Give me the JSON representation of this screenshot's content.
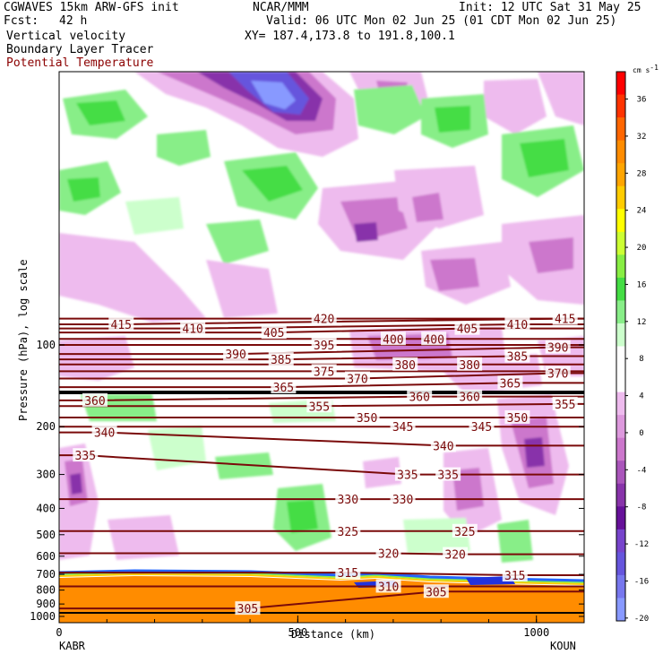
{
  "header": {
    "model": "CGWAVES 15km ARW-GFS init",
    "fcst_label": "Fcst:",
    "fcst_value": "42 h",
    "center": "NCAR/MMM",
    "init": "Init: 12 UTC Sat 31 May 25",
    "valid": "Valid: 06 UTC Mon 02 Jun 25 (01 CDT Mon 02 Jun 25)",
    "xy": "XY= 187.4,173.8 to 191.8,100.1",
    "fields": [
      "Vertical velocity",
      "Boundary Layer Tracer",
      "Potential Temperature"
    ]
  },
  "colors": {
    "theta": "#7a0a0a",
    "tropopause": "#000000",
    "bl_tracer": "#ff8c00"
  },
  "chart_data": {
    "type": "heatmap",
    "xlabel": "Distance (km)",
    "ylabel": "Pressure (hPa), log scale",
    "x_ticks": [
      "0",
      "500",
      "1000"
    ],
    "x_tick_values": [
      0,
      500,
      1000
    ],
    "xlim": [
      0,
      1100
    ],
    "y_ticks": [
      "100",
      "200",
      "300",
      "400",
      "500",
      "600",
      "700",
      "800",
      "900",
      "1000"
    ],
    "y_tick_values": [
      100,
      200,
      300,
      400,
      500,
      600,
      700,
      800,
      900,
      1000
    ],
    "y_scale": "log",
    "left_station": "KABR",
    "right_station": "KOUN",
    "colorbar": {
      "unit": "cm s",
      "unit_exp": "-1",
      "labels": [
        "36",
        "32",
        "28",
        "24",
        "20",
        "16",
        "12",
        "8",
        "4",
        "0",
        "-4",
        "-8",
        "-12",
        "-16",
        "-20"
      ],
      "colors": [
        "#ff0000",
        "#ff3300",
        "#ff6600",
        "#ff8c00",
        "#ffa500",
        "#ffcc00",
        "#ffff00",
        "#ccff33",
        "#88ee44",
        "#44dd44",
        "#88ee88",
        "#ccffcc",
        "#ffffff",
        "#ffffff",
        "#eebbee",
        "#dd99dd",
        "#cc77cc",
        "#aa55bb",
        "#8833aa",
        "#661199",
        "#7744cc",
        "#6655dd",
        "#7777ee",
        "#8899ff"
      ]
    },
    "theta_labels": [
      {
        "t": "415",
        "x": 130,
        "p": 84
      },
      {
        "t": "410",
        "x": 280,
        "p": 87
      },
      {
        "t": "420",
        "x": 555,
        "p": 80
      },
      {
        "t": "405",
        "x": 450,
        "p": 90
      },
      {
        "t": "410",
        "x": 960,
        "p": 84
      },
      {
        "t": "415",
        "x": 1060,
        "p": 80
      },
      {
        "t": "405",
        "x": 855,
        "p": 87
      },
      {
        "t": "400",
        "x": 700,
        "p": 95
      },
      {
        "t": "400",
        "x": 785,
        "p": 95
      },
      {
        "t": "395",
        "x": 555,
        "p": 100
      },
      {
        "t": "390",
        "x": 370,
        "p": 108
      },
      {
        "t": "385",
        "x": 465,
        "p": 113
      },
      {
        "t": "390",
        "x": 1045,
        "p": 102
      },
      {
        "t": "385",
        "x": 960,
        "p": 110
      },
      {
        "t": "380",
        "x": 725,
        "p": 118
      },
      {
        "t": "380",
        "x": 860,
        "p": 118
      },
      {
        "t": "375",
        "x": 555,
        "p": 125
      },
      {
        "t": "370",
        "x": 625,
        "p": 133
      },
      {
        "t": "370",
        "x": 1045,
        "p": 127
      },
      {
        "t": "365",
        "x": 470,
        "p": 143
      },
      {
        "t": "365",
        "x": 945,
        "p": 138
      },
      {
        "t": "360",
        "x": 75,
        "p": 160
      },
      {
        "t": "360",
        "x": 755,
        "p": 155
      },
      {
        "t": "360",
        "x": 860,
        "p": 155
      },
      {
        "t": "355",
        "x": 545,
        "p": 168
      },
      {
        "t": "355",
        "x": 1060,
        "p": 165
      },
      {
        "t": "350",
        "x": 645,
        "p": 185
      },
      {
        "t": "350",
        "x": 960,
        "p": 185
      },
      {
        "t": "345",
        "x": 720,
        "p": 200
      },
      {
        "t": "345",
        "x": 885,
        "p": 200
      },
      {
        "t": "340",
        "x": 95,
        "p": 210
      },
      {
        "t": "340",
        "x": 805,
        "p": 235
      },
      {
        "t": "335",
        "x": 55,
        "p": 255
      },
      {
        "t": "335",
        "x": 730,
        "p": 300
      },
      {
        "t": "335",
        "x": 815,
        "p": 300
      },
      {
        "t": "330",
        "x": 605,
        "p": 370
      },
      {
        "t": "330",
        "x": 720,
        "p": 370
      },
      {
        "t": "325",
        "x": 605,
        "p": 485
      },
      {
        "t": "325",
        "x": 850,
        "p": 485
      },
      {
        "t": "320",
        "x": 690,
        "p": 585
      },
      {
        "t": "320",
        "x": 830,
        "p": 590
      },
      {
        "t": "315",
        "x": 605,
        "p": 690
      },
      {
        "t": "315",
        "x": 955,
        "p": 705
      },
      {
        "t": "310",
        "x": 690,
        "p": 775
      },
      {
        "t": "305",
        "x": 790,
        "p": 810
      },
      {
        "t": "305",
        "x": 395,
        "p": 935
      }
    ]
  }
}
